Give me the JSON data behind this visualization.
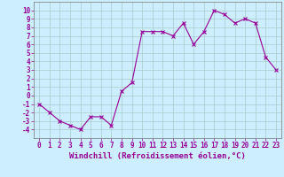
{
  "x": [
    0,
    1,
    2,
    3,
    4,
    5,
    6,
    7,
    8,
    9,
    10,
    11,
    12,
    13,
    14,
    15,
    16,
    17,
    18,
    19,
    20,
    21,
    22,
    23
  ],
  "y": [
    -1,
    -2,
    -3,
    -3.5,
    -4,
    -2.5,
    -2.5,
    -3.5,
    0.5,
    1.5,
    7.5,
    7.5,
    7.5,
    7,
    8.5,
    6,
    7.5,
    10,
    9.5,
    8.5,
    9,
    8.5,
    4.5,
    3
  ],
  "line_color": "#990099",
  "marker": "x",
  "marker_size": 3,
  "bg_color": "#cceeff",
  "grid_color": "#aacccc",
  "xlabel": "Windchill (Refroidissement éolien,°C)",
  "xlabel_color": "#990099",
  "xlabel_fontsize": 6.5,
  "tick_color": "#990099",
  "tick_fontsize": 5.5,
  "ylim": [
    -5,
    11
  ],
  "xlim": [
    -0.5,
    23.5
  ],
  "yticks": [
    -4,
    -3,
    -2,
    -1,
    0,
    1,
    2,
    3,
    4,
    5,
    6,
    7,
    8,
    9,
    10
  ],
  "xticks": [
    0,
    1,
    2,
    3,
    4,
    5,
    6,
    7,
    8,
    9,
    10,
    11,
    12,
    13,
    14,
    15,
    16,
    17,
    18,
    19,
    20,
    21,
    22,
    23
  ]
}
